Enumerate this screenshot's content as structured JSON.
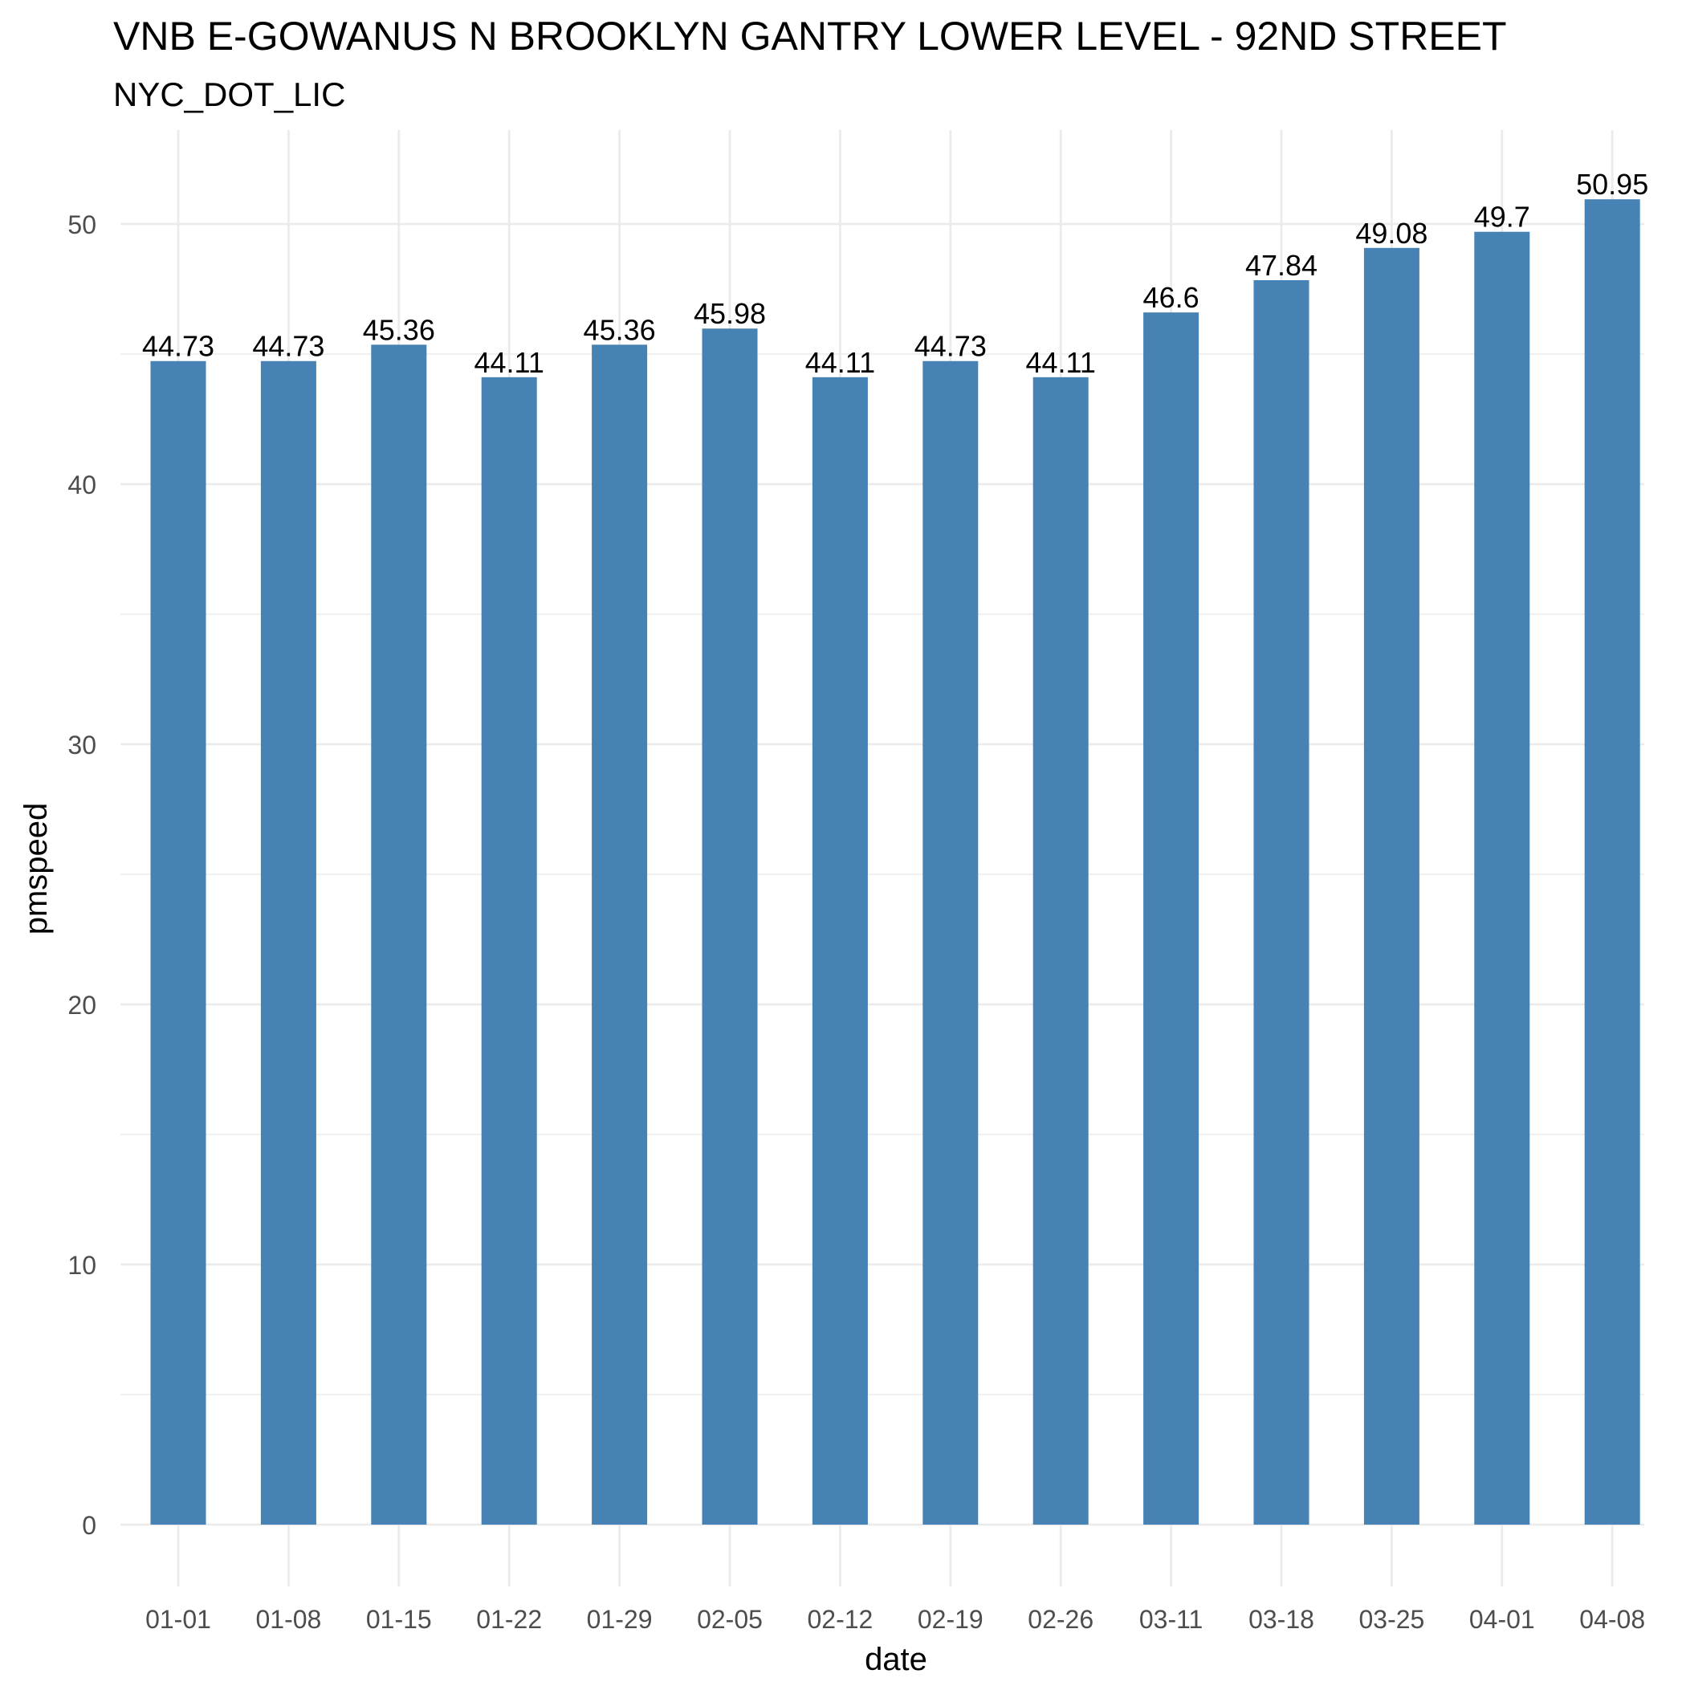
{
  "chart_data": {
    "type": "bar",
    "title": "VNB E-GOWANUS N BROOKLYN GANTRY LOWER LEVEL - 92ND STREET",
    "subtitle": "NYC_DOT_LIC",
    "xlabel": "date",
    "ylabel": "pmspeed",
    "categories": [
      "01-01",
      "01-08",
      "01-15",
      "01-22",
      "01-29",
      "02-05",
      "02-12",
      "02-19",
      "02-26",
      "03-11",
      "03-18",
      "03-25",
      "04-01",
      "04-08"
    ],
    "values": [
      44.73,
      44.73,
      45.36,
      44.11,
      45.36,
      45.98,
      44.11,
      44.73,
      44.11,
      46.6,
      47.84,
      49.08,
      49.7,
      50.95
    ],
    "data_labels": [
      "44.73",
      "44.73",
      "45.36",
      "44.11",
      "45.36",
      "45.98",
      "44.11",
      "44.73",
      "44.11",
      "46.6",
      "47.84",
      "49.08",
      "49.7",
      "50.95"
    ],
    "y_ticks": [
      0,
      10,
      20,
      30,
      40,
      50
    ],
    "y_tick_labels": [
      "0",
      "10",
      "20",
      "30",
      "40",
      "50"
    ],
    "y_minor_ticks": [
      5,
      15,
      25,
      35,
      45
    ],
    "ylim": [
      0,
      53.5
    ],
    "grid": true,
    "legend": "none",
    "bar_color": "#4682b4",
    "grid_color": "#ebebeb"
  }
}
